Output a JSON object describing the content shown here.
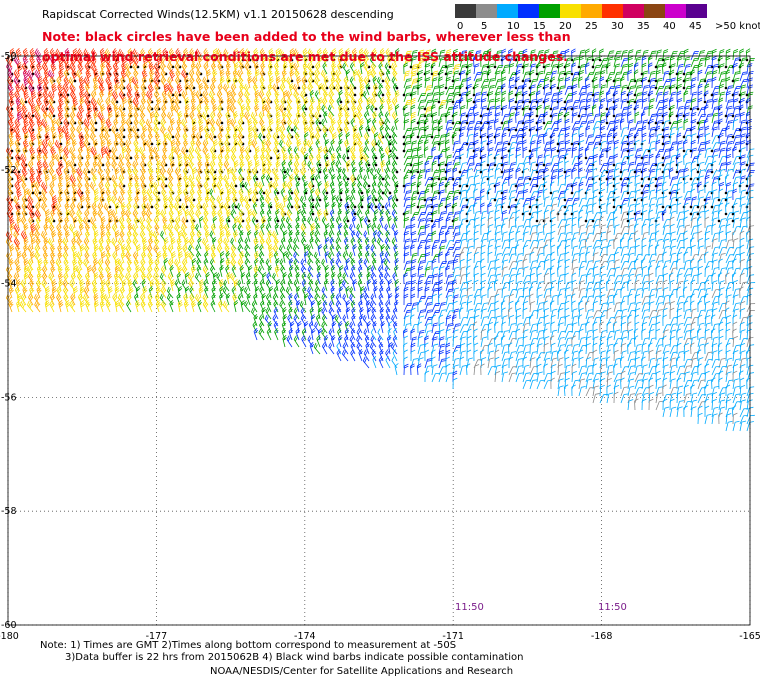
{
  "title": "Rapidscat Corrected Winds(12.5KM) v1.1 20150628 descending",
  "note_lines": [
    "Note: black circles have been added to the wind barbs, wherever less than",
    "optimal wind retrieval conditions are met due to the ISS attitude changes."
  ],
  "legend": {
    "labels": [
      "0",
      "5",
      "10",
      "15",
      "20",
      "25",
      "30",
      "35",
      "40",
      "45",
      ">50 knots"
    ],
    "colors": [
      "#3a3a3a",
      "#8c8c8c",
      "#00aaff",
      "#0030ff",
      "#00a000",
      "#f8e000",
      "#ffaa00",
      "#ff3000",
      "#d00060",
      "#8b4513",
      "#cc00cc",
      "#5a0090"
    ]
  },
  "y_ticks": [
    "-50",
    "-52",
    "-54",
    "-56",
    "-58",
    "-60"
  ],
  "x_ticks": [
    "-180",
    "-177",
    "-174",
    "-171",
    "-168",
    "-165"
  ],
  "times": [
    "11:50",
    "11:50"
  ],
  "footer": {
    "line1": "Note: 1) Times are GMT 2)Times along bottom correspond to measurement at -50S",
    "line2": "3)Data buffer is 22 hrs from 2015062B 4) Black wind barbs indicate possible contamination",
    "line3": "NOAA/NESDIS/Center for Satellite Applications and Research"
  },
  "map_extent": {
    "lon": [
      -180,
      -165
    ],
    "lat": [
      -60,
      -50
    ]
  },
  "wind_field": {
    "description_regions": [
      {
        "name": "west-strong",
        "lon": [
          -180,
          -175
        ],
        "lat": [
          -55,
          -50
        ],
        "speed_kt": 34
      },
      {
        "name": "center-moderate",
        "lon": [
          -175,
          -171
        ],
        "lat": [
          -55,
          -52
        ],
        "speed_kt": 24
      },
      {
        "name": "northeast-weak",
        "lon": [
          -171,
          -165
        ],
        "lat": [
          -53,
          -50
        ],
        "speed_kt": 15
      },
      {
        "name": "southeast-light",
        "lon": [
          -171,
          -165
        ],
        "lat": [
          -56,
          -53
        ],
        "speed_kt": 10
      }
    ]
  }
}
